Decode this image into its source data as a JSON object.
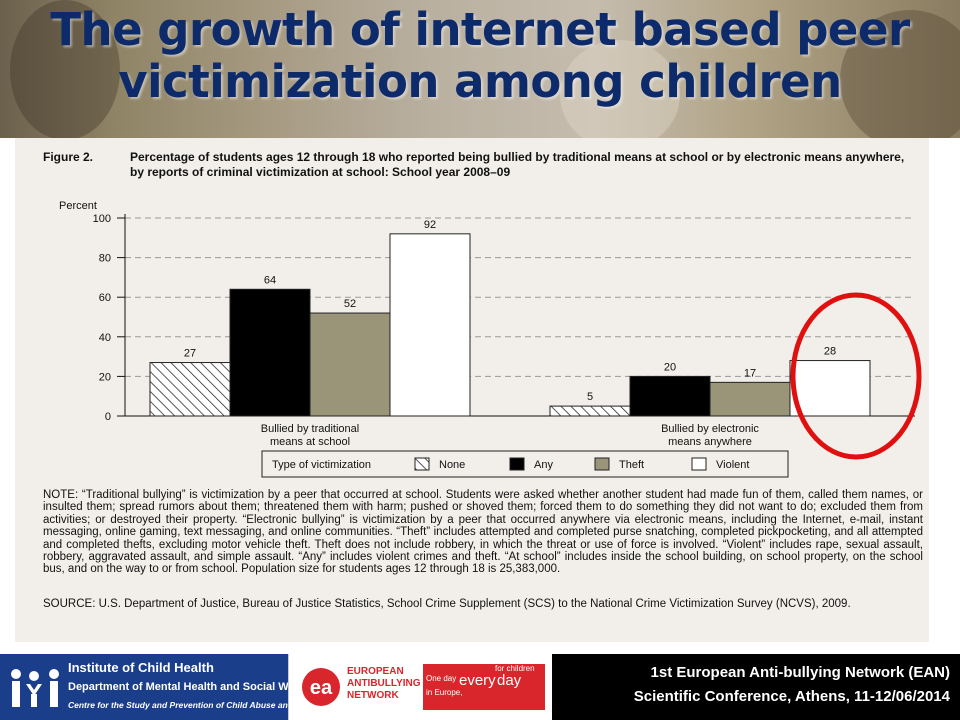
{
  "slide": {
    "title_line1": "The growth of internet based peer",
    "title_line2": "victimization among children"
  },
  "figure": {
    "label": "Figure 2.",
    "caption": "Percentage of students ages 12 through 18 who reported being bullied by traditional means at school or by electronic means anywhere, by reports of criminal victimization at school: School year 2008–09",
    "note": "NOTE: “Traditional bullying” is victimization by a peer that occurred at school. Students were asked whether another student had made fun of them, called them names, or insulted them; spread rumors about them; threatened them with harm; pushed or shoved them; forced them to do something they did not want to do; excluded them from activities; or destroyed their property. “Electronic bullying” is victimization by a peer that occurred anywhere via electronic means, including the Internet, e-mail, instant messaging, online gaming, text messaging, and online communities. “Theft” includes attempted and completed purse snatching, completed pickpocketing, and all attempted and completed thefts, excluding motor vehicle theft. Theft does not include robbery, in which the threat or use of force is involved. “Violent” includes rape, sexual assault, robbery, aggravated assault, and simple assault. “Any” includes violent crimes and theft. “At school” includes inside the school building, on school property, on the school bus, and on the way to or from school. Population size for students ages 12 through 18 is 25,383,000.",
    "source": "SOURCE: U.S. Department of Justice, Bureau of Justice Statistics, School Crime Supplement (SCS) to the National Crime Victimization Survey (NCVS), 2009."
  },
  "chart_data": {
    "type": "bar",
    "ylabel": "Percent",
    "ylim": [
      0,
      100
    ],
    "yticks": [
      0,
      20,
      40,
      60,
      80,
      100
    ],
    "grid": true,
    "categories": [
      "Bullied by traditional\nmeans at school",
      "Bullied by electronic\nmeans anywhere"
    ],
    "legend_title": "Type of victimization",
    "legend_position": "bottom",
    "series": [
      {
        "name": "None",
        "values": [
          27,
          5
        ],
        "fill": "hatch"
      },
      {
        "name": "Any",
        "values": [
          64,
          20
        ],
        "fill": "#000000"
      },
      {
        "name": "Theft",
        "values": [
          52,
          17
        ],
        "fill": "#9a9478"
      },
      {
        "name": "Violent",
        "values": [
          92,
          28
        ],
        "fill": "#ffffff"
      }
    ],
    "highlight": {
      "series": "Violent",
      "category_index": 1,
      "color": "#e01010"
    }
  },
  "footer": {
    "ich_line1": "Institute of Child Health",
    "ich_line2": "Department of Mental Health and Social Welfare",
    "ich_line3": "Centre for the Study and Prevention of Child Abuse and Neglect",
    "ean_line1": "EUROPEAN",
    "ean_line2": "ANTIBULLYING",
    "ean_line3": "NETWORK",
    "ean_slogan_a": "One day",
    "ean_slogan_b": "every",
    "ean_slogan_c": "day",
    "ean_slogan_d": "for children",
    "ean_slogan_e": "in Europe,",
    "conference_line1": "1st European Anti-bullying Network (EAN)",
    "conference_line2": "Scientific Conference, Athens, 11-12/06/2014"
  },
  "colors": {
    "title": "#0d2a6b",
    "highlight": "#e01010",
    "ean_red": "#d8262c",
    "ich_blue": "#1b3e8a"
  }
}
